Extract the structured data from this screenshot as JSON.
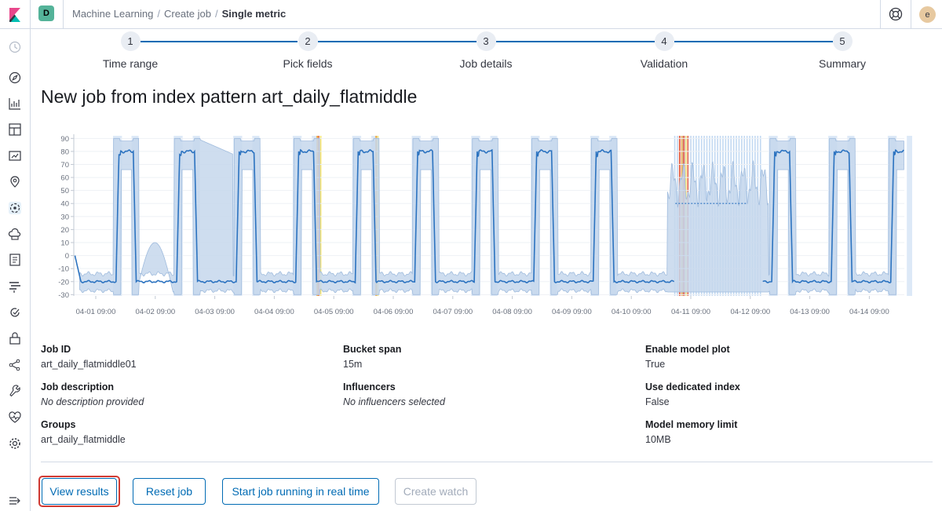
{
  "header": {
    "space_initial": "D",
    "breadcrumbs": [
      "Machine Learning",
      "Create job",
      "Single metric"
    ],
    "user_initial": "e"
  },
  "sidebar": {
    "icons": [
      "clock-icon",
      "compass-icon",
      "visualize-icon",
      "dashboard-icon",
      "canvas-icon",
      "maps-icon",
      "machine-learning-icon",
      "infrastructure-icon",
      "logs-icon",
      "apm-icon",
      "uptime-icon",
      "siem-icon",
      "graph-icon",
      "dev-tools-icon",
      "monitoring-icon",
      "management-icon",
      "collapse-icon"
    ]
  },
  "steps": [
    {
      "number": "1",
      "label": "Time range"
    },
    {
      "number": "2",
      "label": "Pick fields"
    },
    {
      "number": "3",
      "label": "Job details"
    },
    {
      "number": "4",
      "label": "Validation"
    },
    {
      "number": "5",
      "label": "Summary"
    }
  ],
  "page_title": "New job from index pattern art_daily_flatmiddle",
  "chart_data": {
    "type": "line",
    "y_ticks": [
      90,
      80,
      70,
      60,
      50,
      40,
      30,
      20,
      10,
      0,
      -10,
      -20,
      -30
    ],
    "ylim": [
      -31,
      92
    ],
    "x_ticks": [
      "04-01 09:00",
      "04-02 09:00",
      "04-03 09:00",
      "04-04 09:00",
      "04-05 09:00",
      "04-06 09:00",
      "04-07 09:00",
      "04-08 09:00",
      "04-09 09:00",
      "04-10 09:00",
      "04-11 09:00",
      "04-12 09:00",
      "04-13 09:00",
      "04-14 09:00"
    ],
    "series": [
      {
        "values_description": "daily square wave: about -20 overnight, about 80 during the day; flat 40 dashed segment on 04-11 during the data gap",
        "low": -20,
        "high": 80
      }
    ],
    "colors": {
      "line": "#2c73c0",
      "band": "#c7d8ec",
      "anomaly_red": "#e7664c",
      "anomaly_orange": "#f1a73c",
      "anomaly_yellow": "#f5e26a"
    }
  },
  "details": {
    "job_id_title": "Job ID",
    "job_id": "art_daily_flatmiddle01",
    "job_description_title": "Job description",
    "job_description": "No description provided",
    "groups_title": "Groups",
    "groups": "art_daily_flatmiddle",
    "bucket_span_title": "Bucket span",
    "bucket_span": "15m",
    "influencers_title": "Influencers",
    "influencers": "No influencers selected",
    "model_plot_title": "Enable model plot",
    "model_plot": "True",
    "dedicated_index_title": "Use dedicated index",
    "dedicated_index": "False",
    "memory_limit_title": "Model memory limit",
    "memory_limit": "10MB"
  },
  "buttons": {
    "view_results": "View results",
    "reset_job": "Reset job",
    "start_realtime": "Start job running in real time",
    "create_watch": "Create watch"
  }
}
